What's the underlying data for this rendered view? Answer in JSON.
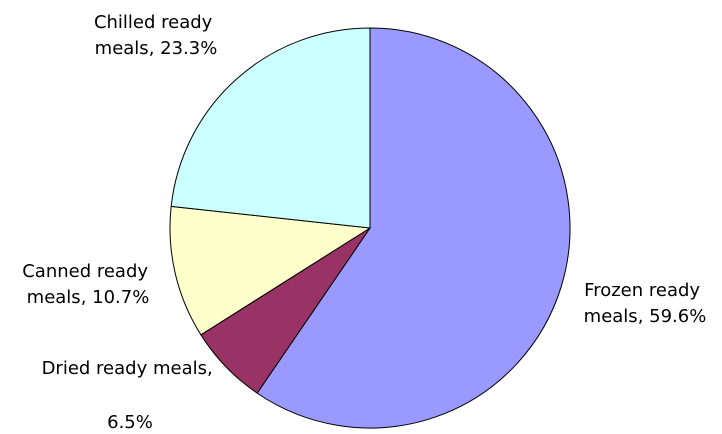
{
  "chart_data": {
    "type": "pie",
    "title": "",
    "series": [
      {
        "categories": [
          "Frozen ready meals",
          "Dried ready meals",
          "Canned ready meals",
          "Chilled ready meals"
        ],
        "values": [
          59.6,
          6.5,
          10.7,
          23.3
        ],
        "colors": [
          "#9999ff",
          "#993366",
          "#ffffcc",
          "#ccffff"
        ]
      }
    ],
    "labels": [
      {
        "name": "Frozen ready meals",
        "lines": [
          "Frozen ready",
          "meals, 59.6%"
        ]
      },
      {
        "name": "Dried ready meals",
        "lines": [
          "Dried ready meals,",
          "6.5%"
        ]
      },
      {
        "name": "Canned ready meals",
        "lines": [
          "Canned ready",
          "meals, 10.7%"
        ]
      },
      {
        "name": "Chilled ready meals",
        "lines": [
          "Chilled ready",
          "meals, 23.3%"
        ]
      }
    ],
    "start_angle": "12 o'clock",
    "direction": "clockwise",
    "legend": "none"
  }
}
